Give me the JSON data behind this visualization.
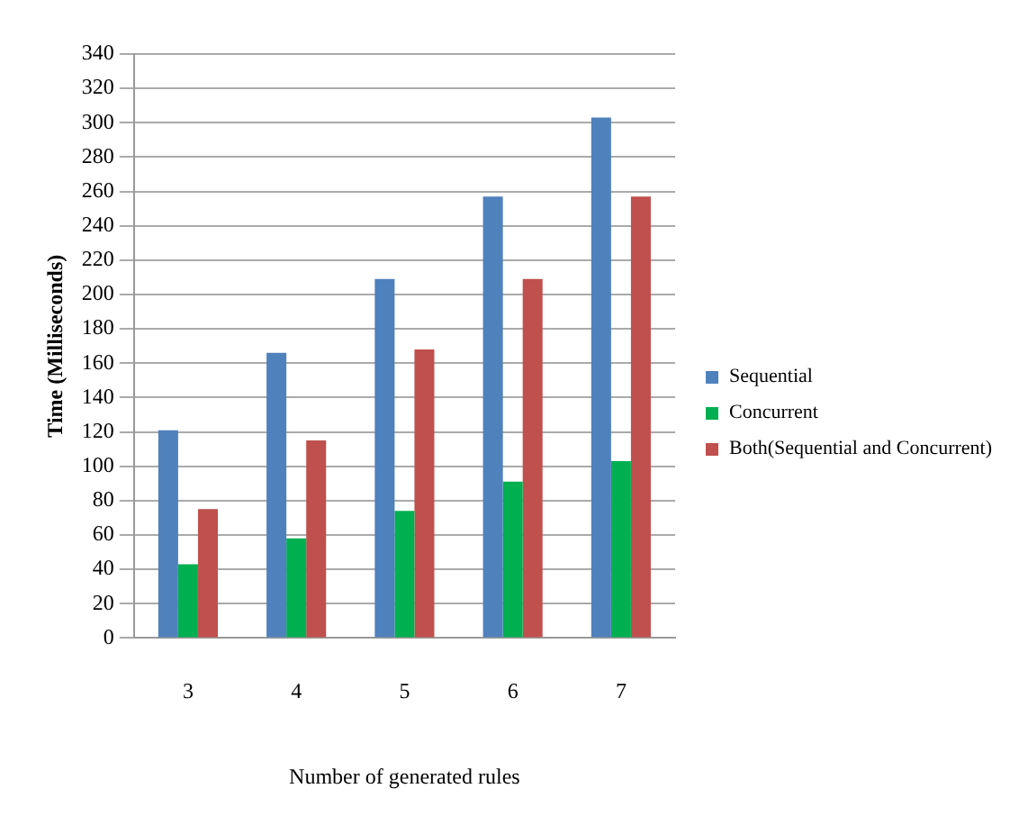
{
  "chart_data": {
    "type": "bar",
    "xlabel": "Number of generated rules",
    "ylabel": "Time (Milliseconds)",
    "categories": [
      "3",
      "4",
      "5",
      "6",
      "7"
    ],
    "series": [
      {
        "name": "Sequential",
        "color": "#4f81bd",
        "values": [
          121,
          166,
          209,
          257,
          303
        ]
      },
      {
        "name": "Concurrent",
        "color": "#00b050",
        "values": [
          43,
          58,
          74,
          91,
          103
        ]
      },
      {
        "name": "Both(Sequential and Concurrent)",
        "color": "#c0504d",
        "values": [
          75,
          115,
          168,
          209,
          257
        ]
      }
    ],
    "ylim": [
      0,
      340
    ],
    "yticks": [
      0,
      20,
      40,
      60,
      80,
      100,
      120,
      140,
      160,
      180,
      200,
      220,
      240,
      260,
      280,
      300,
      320,
      340
    ],
    "grid": "y",
    "legend": "right"
  }
}
